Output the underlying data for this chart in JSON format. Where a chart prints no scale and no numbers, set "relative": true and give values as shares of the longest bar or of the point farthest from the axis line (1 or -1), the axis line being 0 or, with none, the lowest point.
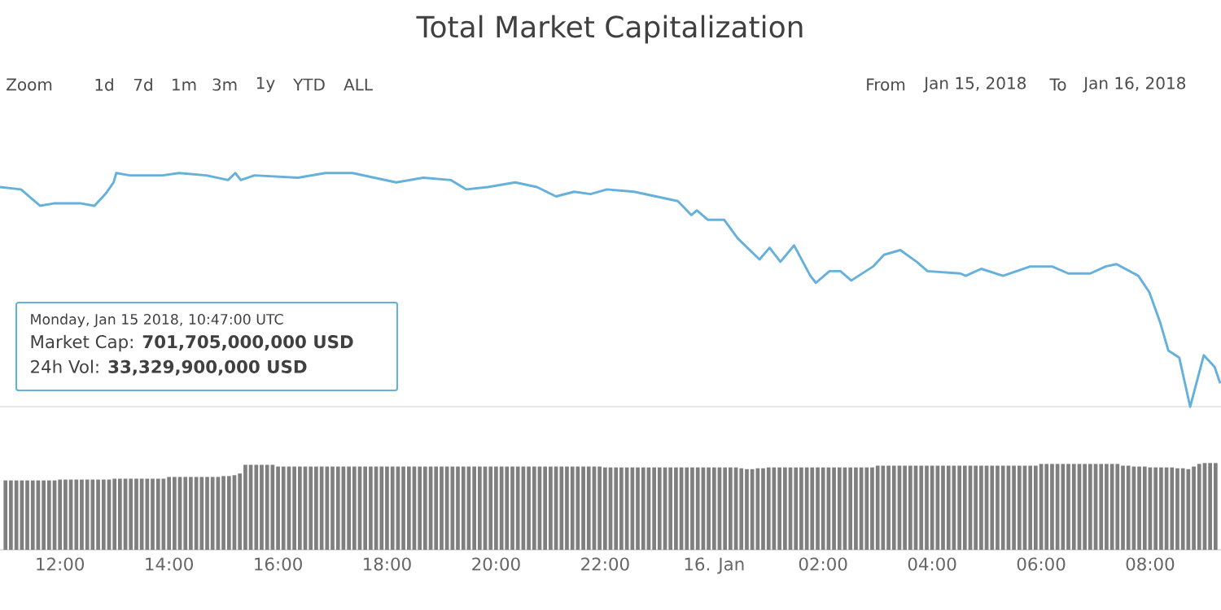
{
  "chart_data": [
    {
      "type": "line",
      "title": "Total Market Capitalization",
      "annotations": [
        "Zoom",
        "1d",
        "7d",
        "1m",
        "3m",
        "1y",
        "YTD",
        "ALL",
        "From",
        "Jan 15, 2018",
        "To",
        "Jan 16, 2018",
        "Monday, Jan 15 2018, 10:47:00 UTC",
        "Market Cap: **701,705,000,000 USD**",
        "24h Vol: **33,329,900,000 USD**"
      ],
      "x": [
        "2018-01-15T10:54",
        "2018-01-15T11:17",
        "2018-01-15T11:38",
        "2018-01-15T11:53",
        "2018-01-15T12:23",
        "2018-01-15T12:38",
        "2018-01-15T12:50",
        "2018-01-15T12:59",
        "2018-01-15T13:02",
        "2018-01-15T13:17",
        "2018-01-15T13:53",
        "2018-01-15T14:11",
        "2018-01-15T14:41",
        "2018-01-15T15:05",
        "2018-01-15T15:13",
        "2018-01-15T15:19",
        "2018-01-15T15:34",
        "2018-01-15T16:22",
        "2018-01-15T16:52",
        "2018-01-15T17:22",
        "2018-01-15T17:46",
        "2018-01-15T18:10",
        "2018-01-15T18:40",
        "2018-01-15T19:10",
        "2018-01-15T19:27",
        "2018-01-15T19:51",
        "2018-01-15T20:21",
        "2018-01-15T20:45",
        "2018-01-15T21:06",
        "2018-01-15T21:26",
        "2018-01-15T21:44",
        "2018-01-15T22:02",
        "2018-01-15T22:32",
        "2018-01-15T23:20",
        "2018-01-15T23:35",
        "2018-01-15T23:41",
        "2018-01-15T23:53",
        "2018-01-16T00:11",
        "2018-01-16T00:26",
        "2018-01-16T00:50",
        "2018-01-16T01:01",
        "2018-01-16T01:13",
        "2018-01-16T01:28",
        "2018-01-16T01:46",
        "2018-01-16T01:52",
        "2018-01-16T02:07",
        "2018-01-16T02:19",
        "2018-01-16T02:31",
        "2018-01-16T02:55",
        "2018-01-16T03:07",
        "2018-01-16T03:25",
        "2018-01-16T03:43",
        "2018-01-16T03:55",
        "2018-01-16T04:31",
        "2018-01-16T04:37",
        "2018-01-16T04:54",
        "2018-01-16T05:18",
        "2018-01-16T05:48",
        "2018-01-16T06:12",
        "2018-01-16T06:30",
        "2018-01-16T06:54",
        "2018-01-16T07:11",
        "2018-01-16T07:23",
        "2018-01-16T07:47",
        "2018-01-16T07:59",
        "2018-01-16T08:11",
        "2018-01-16T08:20",
        "2018-01-16T08:32",
        "2018-01-16T08:44",
        "2018-01-16T08:59",
        "2018-01-16T09:11",
        "2018-01-16T09:17"
      ],
      "values": [
        0.94,
        0.93,
        0.86,
        0.87,
        0.87,
        0.86,
        0.91,
        0.96,
        1.0,
        0.99,
        0.99,
        1.0,
        0.99,
        0.97,
        1.0,
        0.97,
        0.99,
        0.98,
        1.0,
        1.0,
        0.98,
        0.96,
        0.98,
        0.97,
        0.93,
        0.94,
        0.96,
        0.94,
        0.9,
        0.92,
        0.91,
        0.93,
        0.92,
        0.88,
        0.82,
        0.84,
        0.8,
        0.8,
        0.72,
        0.63,
        0.68,
        0.62,
        0.69,
        0.56,
        0.53,
        0.58,
        0.58,
        0.54,
        0.6,
        0.65,
        0.67,
        0.62,
        0.58,
        0.57,
        0.56,
        0.59,
        0.56,
        0.6,
        0.6,
        0.57,
        0.57,
        0.6,
        0.61,
        0.56,
        0.49,
        0.36,
        0.24,
        0.21,
        0,
        0.22,
        0.17,
        0.1
      ],
      "color": "#65b1dc",
      "relative": true,
      "xlim": [
        "2018-01-15T10:54",
        "2018-01-16T09:18"
      ],
      "tick_labels": false
    },
    {
      "type": "bar",
      "x": [
        "2018-01-15T11:00",
        "2018-01-15T11:06",
        "2018-01-15T11:12",
        "2018-01-15T11:18",
        "2018-01-15T11:24",
        "2018-01-15T11:30",
        "2018-01-15T11:36",
        "2018-01-15T11:42",
        "2018-01-15T11:48",
        "2018-01-15T11:54",
        "2018-01-15T12:00",
        "2018-01-15T12:06",
        "2018-01-15T12:12",
        "2018-01-15T12:18",
        "2018-01-15T12:24",
        "2018-01-15T12:30",
        "2018-01-15T12:36",
        "2018-01-15T12:42",
        "2018-01-15T12:48",
        "2018-01-15T12:54",
        "2018-01-15T13:00",
        "2018-01-15T13:06",
        "2018-01-15T13:12",
        "2018-01-15T13:18",
        "2018-01-15T13:24",
        "2018-01-15T13:30",
        "2018-01-15T13:36",
        "2018-01-15T13:42",
        "2018-01-15T13:48",
        "2018-01-15T13:54",
        "2018-01-15T14:00",
        "2018-01-15T14:06",
        "2018-01-15T14:12",
        "2018-01-15T14:18",
        "2018-01-15T14:24",
        "2018-01-15T14:30",
        "2018-01-15T14:36",
        "2018-01-15T14:42",
        "2018-01-15T14:48",
        "2018-01-15T14:54",
        "2018-01-15T15:00",
        "2018-01-15T15:06",
        "2018-01-15T15:12",
        "2018-01-15T15:18",
        "2018-01-15T15:24",
        "2018-01-15T15:30",
        "2018-01-15T15:36",
        "2018-01-15T15:42",
        "2018-01-15T15:48",
        "2018-01-15T15:54",
        "2018-01-15T16:00",
        "2018-01-15T16:06",
        "2018-01-15T16:12",
        "2018-01-15T16:18",
        "2018-01-15T16:24",
        "2018-01-15T16:30",
        "2018-01-15T16:36",
        "2018-01-15T16:42",
        "2018-01-15T16:48",
        "2018-01-15T16:54",
        "2018-01-15T17:00",
        "2018-01-15T17:06",
        "2018-01-15T17:12",
        "2018-01-15T17:18",
        "2018-01-15T17:24",
        "2018-01-15T17:30",
        "2018-01-15T17:36",
        "2018-01-15T17:42",
        "2018-01-15T17:48",
        "2018-01-15T17:54",
        "2018-01-15T18:00",
        "2018-01-15T18:06",
        "2018-01-15T18:12",
        "2018-01-15T18:18",
        "2018-01-15T18:24",
        "2018-01-15T18:30",
        "2018-01-15T18:36",
        "2018-01-15T18:42",
        "2018-01-15T18:48",
        "2018-01-15T18:54",
        "2018-01-15T19:00",
        "2018-01-15T19:06",
        "2018-01-15T19:12",
        "2018-01-15T19:18",
        "2018-01-15T19:24",
        "2018-01-15T19:30",
        "2018-01-15T19:36",
        "2018-01-15T19:42",
        "2018-01-15T19:48",
        "2018-01-15T19:54",
        "2018-01-15T20:00",
        "2018-01-15T20:06",
        "2018-01-15T20:12",
        "2018-01-15T20:18",
        "2018-01-15T20:24",
        "2018-01-15T20:30",
        "2018-01-15T20:36",
        "2018-01-15T20:42",
        "2018-01-15T20:48",
        "2018-01-15T20:54",
        "2018-01-15T21:00",
        "2018-01-15T21:06",
        "2018-01-15T21:12",
        "2018-01-15T21:18",
        "2018-01-15T21:24",
        "2018-01-15T21:30",
        "2018-01-15T21:36",
        "2018-01-15T21:42",
        "2018-01-15T21:48",
        "2018-01-15T21:54",
        "2018-01-15T22:00",
        "2018-01-15T22:06",
        "2018-01-15T22:12",
        "2018-01-15T22:18",
        "2018-01-15T22:24",
        "2018-01-15T22:30",
        "2018-01-15T22:36",
        "2018-01-15T22:42",
        "2018-01-15T22:48",
        "2018-01-15T22:54",
        "2018-01-15T23:00",
        "2018-01-15T23:06",
        "2018-01-15T23:12",
        "2018-01-15T23:18",
        "2018-01-15T23:24",
        "2018-01-15T23:30",
        "2018-01-15T23:36",
        "2018-01-15T23:42",
        "2018-01-15T23:48",
        "2018-01-15T23:54",
        "2018-01-16T00:00",
        "2018-01-16T00:06",
        "2018-01-16T00:12",
        "2018-01-16T00:18",
        "2018-01-16T00:24",
        "2018-01-16T00:30",
        "2018-01-16T00:36",
        "2018-01-16T00:42",
        "2018-01-16T00:48",
        "2018-01-16T00:54",
        "2018-01-16T01:00",
        "2018-01-16T01:06",
        "2018-01-16T01:12",
        "2018-01-16T01:18",
        "2018-01-16T01:24",
        "2018-01-16T01:30",
        "2018-01-16T01:36",
        "2018-01-16T01:42",
        "2018-01-16T01:48",
        "2018-01-16T01:54",
        "2018-01-16T02:00",
        "2018-01-16T02:06",
        "2018-01-16T02:12",
        "2018-01-16T02:18",
        "2018-01-16T02:24",
        "2018-01-16T02:30",
        "2018-01-16T02:36",
        "2018-01-16T02:42",
        "2018-01-16T02:48",
        "2018-01-16T02:54",
        "2018-01-16T03:00",
        "2018-01-16T03:06",
        "2018-01-16T03:12",
        "2018-01-16T03:18",
        "2018-01-16T03:24",
        "2018-01-16T03:30",
        "2018-01-16T03:36",
        "2018-01-16T03:42",
        "2018-01-16T03:48",
        "2018-01-16T03:54",
        "2018-01-16T04:00",
        "2018-01-16T04:06",
        "2018-01-16T04:12",
        "2018-01-16T04:18",
        "2018-01-16T04:24",
        "2018-01-16T04:30",
        "2018-01-16T04:36",
        "2018-01-16T04:42",
        "2018-01-16T04:48",
        "2018-01-16T04:54",
        "2018-01-16T05:00",
        "2018-01-16T05:06",
        "2018-01-16T05:12",
        "2018-01-16T05:18",
        "2018-01-16T05:24",
        "2018-01-16T05:30",
        "2018-01-16T05:36",
        "2018-01-16T05:42",
        "2018-01-16T05:48",
        "2018-01-16T05:54",
        "2018-01-16T06:00",
        "2018-01-16T06:06",
        "2018-01-16T06:12",
        "2018-01-16T06:18",
        "2018-01-16T06:24",
        "2018-01-16T06:30",
        "2018-01-16T06:36",
        "2018-01-16T06:42",
        "2018-01-16T06:48",
        "2018-01-16T06:54",
        "2018-01-16T07:00",
        "2018-01-16T07:06",
        "2018-01-16T07:12",
        "2018-01-16T07:18",
        "2018-01-16T07:24",
        "2018-01-16T07:30",
        "2018-01-16T07:36",
        "2018-01-16T07:42",
        "2018-01-16T07:48",
        "2018-01-16T07:54",
        "2018-01-16T08:00",
        "2018-01-16T08:06",
        "2018-01-16T08:12",
        "2018-01-16T08:18",
        "2018-01-16T08:24",
        "2018-01-16T08:30",
        "2018-01-16T08:36",
        "2018-01-16T08:42",
        "2018-01-16T08:48",
        "2018-01-16T08:54",
        "2018-01-16T09:00",
        "2018-01-16T09:06",
        "2018-01-16T09:12"
      ],
      "values": [
        0.8,
        0.8,
        0.8,
        0.8,
        0.8,
        0.8,
        0.8,
        0.8,
        0.8,
        0.8,
        0.81,
        0.81,
        0.81,
        0.81,
        0.81,
        0.81,
        0.81,
        0.81,
        0.81,
        0.81,
        0.82,
        0.82,
        0.82,
        0.82,
        0.82,
        0.82,
        0.82,
        0.82,
        0.82,
        0.82,
        0.84,
        0.84,
        0.84,
        0.84,
        0.84,
        0.84,
        0.84,
        0.84,
        0.84,
        0.84,
        0.85,
        0.85,
        0.86,
        0.88,
        0.98,
        0.98,
        0.98,
        0.98,
        0.98,
        0.98,
        0.96,
        0.96,
        0.96,
        0.96,
        0.96,
        0.96,
        0.96,
        0.96,
        0.96,
        0.96,
        0.96,
        0.96,
        0.96,
        0.96,
        0.96,
        0.96,
        0.96,
        0.96,
        0.96,
        0.96,
        0.96,
        0.96,
        0.96,
        0.96,
        0.96,
        0.96,
        0.96,
        0.96,
        0.96,
        0.96,
        0.96,
        0.96,
        0.96,
        0.96,
        0.96,
        0.96,
        0.96,
        0.96,
        0.96,
        0.96,
        0.96,
        0.96,
        0.96,
        0.96,
        0.96,
        0.96,
        0.96,
        0.96,
        0.96,
        0.96,
        0.96,
        0.96,
        0.96,
        0.96,
        0.96,
        0.96,
        0.96,
        0.96,
        0.96,
        0.96,
        0.95,
        0.95,
        0.95,
        0.95,
        0.95,
        0.95,
        0.95,
        0.95,
        0.95,
        0.95,
        0.95,
        0.95,
        0.95,
        0.95,
        0.95,
        0.95,
        0.95,
        0.95,
        0.95,
        0.95,
        0.95,
        0.95,
        0.95,
        0.95,
        0.95,
        0.94,
        0.93,
        0.93,
        0.94,
        0.94,
        0.95,
        0.95,
        0.95,
        0.95,
        0.95,
        0.95,
        0.95,
        0.95,
        0.95,
        0.95,
        0.95,
        0.95,
        0.95,
        0.95,
        0.95,
        0.95,
        0.95,
        0.95,
        0.95,
        0.95,
        0.97,
        0.97,
        0.97,
        0.97,
        0.97,
        0.97,
        0.97,
        0.97,
        0.97,
        0.97,
        0.97,
        0.97,
        0.97,
        0.97,
        0.97,
        0.97,
        0.97,
        0.97,
        0.97,
        0.97,
        0.97,
        0.97,
        0.97,
        0.97,
        0.97,
        0.97,
        0.97,
        0.97,
        0.97,
        0.97,
        0.99,
        0.99,
        0.99,
        0.99,
        0.99,
        0.99,
        0.99,
        0.99,
        0.99,
        0.99,
        0.99,
        0.99,
        0.99,
        0.99,
        0.99,
        0.97,
        0.97,
        0.96,
        0.96,
        0.96,
        0.95,
        0.95,
        0.95,
        0.95,
        0.95,
        0.94,
        0.94,
        0.93,
        0.96,
        0.99,
        1.0,
        1.0,
        1.0
      ],
      "color": "#7f7f7f",
      "relative": true,
      "xlim": [
        "2018-01-15T10:54",
        "2018-01-16T09:18"
      ],
      "xticks": [
        {
          "value": "2018-01-15T12:00",
          "label": "12:00"
        },
        {
          "value": "2018-01-15T14:00",
          "label": "14:00"
        },
        {
          "value": "2018-01-15T16:00",
          "label": "16:00"
        },
        {
          "value": "2018-01-15T18:00",
          "label": "18:00"
        },
        {
          "value": "2018-01-15T20:00",
          "label": "20:00"
        },
        {
          "value": "2018-01-15T22:00",
          "label": "22:00"
        },
        {
          "value": "2018-01-16T00:00",
          "label": "16. Jan"
        },
        {
          "value": "2018-01-16T02:00",
          "label": "02:00"
        },
        {
          "value": "2018-01-16T04:00",
          "label": "04:00"
        },
        {
          "value": "2018-01-16T06:00",
          "label": "06:00"
        },
        {
          "value": "2018-01-16T08:00",
          "label": "08:00"
        }
      ],
      "tick_labels": "x"
    }
  ]
}
